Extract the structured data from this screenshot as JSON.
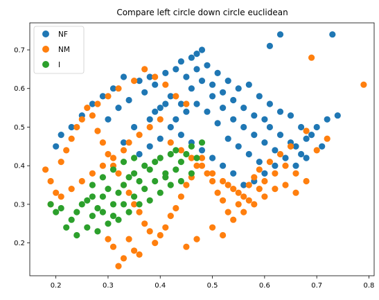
{
  "chart_data": {
    "type": "scatter",
    "title": "Compare left circle down circle euclidean",
    "xlabel": "",
    "ylabel": "",
    "xlim": [
      0.15,
      0.81
    ],
    "ylim": [
      0.115,
      0.77
    ],
    "xticks": [
      0.2,
      0.3,
      0.4,
      0.5,
      0.6,
      0.7,
      0.8
    ],
    "yticks": [
      0.2,
      0.3,
      0.4,
      0.5,
      0.6,
      0.7
    ],
    "xtick_labels": [
      "0.2",
      "0.3",
      "0.4",
      "0.5",
      "0.6",
      "0.7",
      "0.8"
    ],
    "ytick_labels": [
      "0.2",
      "0.3",
      "0.4",
      "0.5",
      "0.6",
      "0.7"
    ],
    "grid": false,
    "legend_position": "top-left",
    "series": [
      {
        "name": "NF",
        "color": "#1f77b4",
        "points": [
          [
            0.33,
            0.46
          ],
          [
            0.35,
            0.5
          ],
          [
            0.38,
            0.52
          ],
          [
            0.4,
            0.55
          ],
          [
            0.42,
            0.58
          ],
          [
            0.44,
            0.56
          ],
          [
            0.46,
            0.6
          ],
          [
            0.48,
            0.62
          ],
          [
            0.5,
            0.58
          ],
          [
            0.52,
            0.55
          ],
          [
            0.54,
            0.52
          ],
          [
            0.56,
            0.5
          ],
          [
            0.58,
            0.48
          ],
          [
            0.6,
            0.46
          ],
          [
            0.62,
            0.44
          ],
          [
            0.64,
            0.42
          ],
          [
            0.66,
            0.45
          ],
          [
            0.68,
            0.47
          ],
          [
            0.7,
            0.5
          ],
          [
            0.72,
            0.52
          ],
          [
            0.74,
            0.53
          ],
          [
            0.73,
            0.74
          ],
          [
            0.63,
            0.74
          ],
          [
            0.61,
            0.71
          ],
          [
            0.48,
            0.7
          ],
          [
            0.47,
            0.69
          ],
          [
            0.46,
            0.68
          ],
          [
            0.44,
            0.67
          ],
          [
            0.43,
            0.65
          ],
          [
            0.41,
            0.64
          ],
          [
            0.38,
            0.63
          ],
          [
            0.36,
            0.62
          ],
          [
            0.33,
            0.63
          ],
          [
            0.31,
            0.6
          ],
          [
            0.29,
            0.58
          ],
          [
            0.27,
            0.56
          ],
          [
            0.25,
            0.53
          ],
          [
            0.23,
            0.5
          ],
          [
            0.21,
            0.48
          ],
          [
            0.2,
            0.45
          ],
          [
            0.3,
            0.52
          ],
          [
            0.32,
            0.55
          ],
          [
            0.34,
            0.57
          ],
          [
            0.37,
            0.59
          ],
          [
            0.39,
            0.61
          ],
          [
            0.45,
            0.63
          ],
          [
            0.47,
            0.65
          ],
          [
            0.49,
            0.66
          ],
          [
            0.51,
            0.64
          ],
          [
            0.53,
            0.62
          ],
          [
            0.55,
            0.6
          ],
          [
            0.57,
            0.61
          ],
          [
            0.59,
            0.58
          ],
          [
            0.61,
            0.56
          ],
          [
            0.63,
            0.54
          ],
          [
            0.65,
            0.53
          ],
          [
            0.67,
            0.5
          ],
          [
            0.69,
            0.48
          ],
          [
            0.71,
            0.45
          ],
          [
            0.66,
            0.4
          ],
          [
            0.68,
            0.42
          ],
          [
            0.62,
            0.4
          ],
          [
            0.6,
            0.38
          ],
          [
            0.58,
            0.36
          ],
          [
            0.56,
            0.35
          ],
          [
            0.54,
            0.38
          ],
          [
            0.52,
            0.4
          ],
          [
            0.5,
            0.42
          ],
          [
            0.48,
            0.44
          ],
          [
            0.46,
            0.46
          ],
          [
            0.44,
            0.48
          ],
          [
            0.42,
            0.5
          ],
          [
            0.4,
            0.47
          ],
          [
            0.38,
            0.45
          ],
          [
            0.36,
            0.43
          ],
          [
            0.51,
            0.51
          ],
          [
            0.53,
            0.47
          ],
          [
            0.55,
            0.45
          ],
          [
            0.57,
            0.43
          ],
          [
            0.59,
            0.41
          ],
          [
            0.61,
            0.5
          ],
          [
            0.63,
            0.48
          ],
          [
            0.65,
            0.46
          ],
          [
            0.67,
            0.43
          ],
          [
            0.56,
            0.55
          ],
          [
            0.58,
            0.53
          ],
          [
            0.6,
            0.52
          ],
          [
            0.54,
            0.57
          ],
          [
            0.52,
            0.59
          ],
          [
            0.5,
            0.61
          ],
          [
            0.49,
            0.54
          ],
          [
            0.47,
            0.56
          ],
          [
            0.45,
            0.54
          ],
          [
            0.43,
            0.52
          ],
          [
            0.41,
            0.56
          ],
          [
            0.39,
            0.54
          ]
        ]
      },
      {
        "name": "NM",
        "color": "#ff7f0e",
        "points": [
          [
            0.18,
            0.39
          ],
          [
            0.19,
            0.36
          ],
          [
            0.2,
            0.33
          ],
          [
            0.21,
            0.41
          ],
          [
            0.22,
            0.44
          ],
          [
            0.23,
            0.47
          ],
          [
            0.24,
            0.5
          ],
          [
            0.25,
            0.52
          ],
          [
            0.26,
            0.55
          ],
          [
            0.27,
            0.53
          ],
          [
            0.28,
            0.49
          ],
          [
            0.29,
            0.46
          ],
          [
            0.3,
            0.43
          ],
          [
            0.31,
            0.4
          ],
          [
            0.32,
            0.38
          ],
          [
            0.33,
            0.35
          ],
          [
            0.34,
            0.33
          ],
          [
            0.35,
            0.3
          ],
          [
            0.36,
            0.28
          ],
          [
            0.37,
            0.25
          ],
          [
            0.38,
            0.23
          ],
          [
            0.39,
            0.2
          ],
          [
            0.4,
            0.22
          ],
          [
            0.41,
            0.24
          ],
          [
            0.42,
            0.27
          ],
          [
            0.43,
            0.29
          ],
          [
            0.44,
            0.32
          ],
          [
            0.45,
            0.35
          ],
          [
            0.46,
            0.37
          ],
          [
            0.47,
            0.4
          ],
          [
            0.48,
            0.42
          ],
          [
            0.49,
            0.38
          ],
          [
            0.5,
            0.36
          ],
          [
            0.51,
            0.33
          ],
          [
            0.52,
            0.31
          ],
          [
            0.53,
            0.28
          ],
          [
            0.54,
            0.26
          ],
          [
            0.55,
            0.3
          ],
          [
            0.56,
            0.32
          ],
          [
            0.57,
            0.35
          ],
          [
            0.58,
            0.37
          ],
          [
            0.59,
            0.34
          ],
          [
            0.6,
            0.36
          ],
          [
            0.62,
            0.38
          ],
          [
            0.64,
            0.35
          ],
          [
            0.66,
            0.33
          ],
          [
            0.79,
            0.61
          ],
          [
            0.69,
            0.68
          ],
          [
            0.32,
            0.14
          ],
          [
            0.33,
            0.16
          ],
          [
            0.35,
            0.18
          ],
          [
            0.31,
            0.19
          ],
          [
            0.3,
            0.21
          ],
          [
            0.34,
            0.21
          ],
          [
            0.36,
            0.17
          ],
          [
            0.45,
            0.19
          ],
          [
            0.47,
            0.21
          ],
          [
            0.5,
            0.24
          ],
          [
            0.52,
            0.22
          ],
          [
            0.28,
            0.56
          ],
          [
            0.3,
            0.58
          ],
          [
            0.32,
            0.6
          ],
          [
            0.35,
            0.62
          ],
          [
            0.37,
            0.65
          ],
          [
            0.39,
            0.63
          ],
          [
            0.41,
            0.61
          ],
          [
            0.43,
            0.58
          ],
          [
            0.45,
            0.56
          ],
          [
            0.4,
            0.52
          ],
          [
            0.38,
            0.5
          ],
          [
            0.36,
            0.48
          ],
          [
            0.34,
            0.46
          ],
          [
            0.33,
            0.44
          ],
          [
            0.31,
            0.42
          ],
          [
            0.29,
            0.4
          ],
          [
            0.27,
            0.38
          ],
          [
            0.25,
            0.36
          ],
          [
            0.23,
            0.34
          ],
          [
            0.21,
            0.32
          ],
          [
            0.19,
            0.3
          ],
          [
            0.42,
            0.46
          ],
          [
            0.44,
            0.44
          ],
          [
            0.46,
            0.42
          ],
          [
            0.48,
            0.4
          ],
          [
            0.5,
            0.38
          ],
          [
            0.52,
            0.36
          ],
          [
            0.54,
            0.34
          ],
          [
            0.56,
            0.28
          ],
          [
            0.58,
            0.3
          ],
          [
            0.6,
            0.32
          ],
          [
            0.62,
            0.34
          ],
          [
            0.64,
            0.4
          ],
          [
            0.66,
            0.38
          ],
          [
            0.68,
            0.36
          ],
          [
            0.7,
            0.44
          ],
          [
            0.72,
            0.47
          ],
          [
            0.68,
            0.49
          ],
          [
            0.65,
            0.45
          ],
          [
            0.63,
            0.43
          ],
          [
            0.61,
            0.41
          ],
          [
            0.59,
            0.39
          ],
          [
            0.57,
            0.31
          ],
          [
            0.55,
            0.33
          ],
          [
            0.53,
            0.35
          ]
        ]
      },
      {
        "name": "I",
        "color": "#2ca02c",
        "points": [
          [
            0.19,
            0.3
          ],
          [
            0.2,
            0.28
          ],
          [
            0.21,
            0.29
          ],
          [
            0.22,
            0.24
          ],
          [
            0.23,
            0.26
          ],
          [
            0.24,
            0.28
          ],
          [
            0.25,
            0.3
          ],
          [
            0.26,
            0.31
          ],
          [
            0.27,
            0.27
          ],
          [
            0.28,
            0.29
          ],
          [
            0.29,
            0.32
          ],
          [
            0.3,
            0.34
          ],
          [
            0.31,
            0.3
          ],
          [
            0.32,
            0.33
          ],
          [
            0.33,
            0.35
          ],
          [
            0.34,
            0.37
          ],
          [
            0.35,
            0.38
          ],
          [
            0.36,
            0.36
          ],
          [
            0.37,
            0.4
          ],
          [
            0.38,
            0.39
          ],
          [
            0.39,
            0.41
          ],
          [
            0.4,
            0.42
          ],
          [
            0.41,
            0.38
          ],
          [
            0.42,
            0.43
          ],
          [
            0.43,
            0.44
          ],
          [
            0.44,
            0.41
          ],
          [
            0.45,
            0.43
          ],
          [
            0.46,
            0.45
          ],
          [
            0.48,
            0.46
          ],
          [
            0.47,
            0.42
          ],
          [
            0.46,
            0.38
          ],
          [
            0.44,
            0.36
          ],
          [
            0.42,
            0.35
          ],
          [
            0.4,
            0.33
          ],
          [
            0.38,
            0.31
          ],
          [
            0.36,
            0.3
          ],
          [
            0.34,
            0.28
          ],
          [
            0.32,
            0.26
          ],
          [
            0.3,
            0.25
          ],
          [
            0.28,
            0.23
          ],
          [
            0.26,
            0.24
          ],
          [
            0.24,
            0.22
          ],
          [
            0.27,
            0.35
          ],
          [
            0.29,
            0.37
          ],
          [
            0.31,
            0.39
          ],
          [
            0.33,
            0.41
          ],
          [
            0.35,
            0.42
          ],
          [
            0.37,
            0.34
          ],
          [
            0.39,
            0.36
          ],
          [
            0.41,
            0.37
          ],
          [
            0.43,
            0.39
          ],
          [
            0.33,
            0.3
          ],
          [
            0.35,
            0.32
          ],
          [
            0.29,
            0.28
          ],
          [
            0.31,
            0.27
          ],
          [
            0.27,
            0.32
          ]
        ]
      }
    ]
  }
}
